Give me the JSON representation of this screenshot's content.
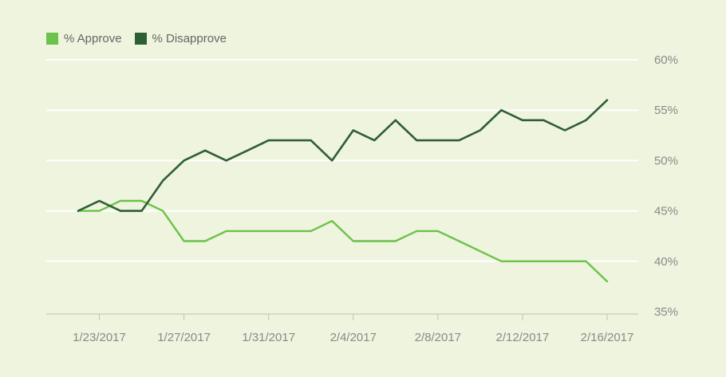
{
  "chart_data": {
    "type": "line",
    "title": "",
    "xlabel": "",
    "ylabel": "",
    "ylim": [
      35,
      60
    ],
    "ytick_labels": [
      "60%",
      "55%",
      "50%",
      "45%",
      "40%",
      "35%"
    ],
    "ytick_values": [
      60,
      55,
      50,
      45,
      40,
      35
    ],
    "xtick_labels": [
      "1/23/2017",
      "1/27/2017",
      "1/31/2017",
      "2/4/2017",
      "2/8/2017",
      "2/12/2017",
      "2/16/2017"
    ],
    "xtick_positions": [
      1,
      5,
      9,
      13,
      17,
      21,
      25
    ],
    "x": [
      0,
      1,
      2,
      3,
      4,
      5,
      6,
      7,
      8,
      9,
      10,
      11,
      12,
      13,
      14,
      15,
      16,
      17,
      18,
      19,
      20,
      21,
      22,
      23,
      24,
      25
    ],
    "series": [
      {
        "name": "% Approve",
        "color": "#6cc24a",
        "values": [
          45,
          45,
          46,
          46,
          45,
          42,
          42,
          43,
          43,
          43,
          43,
          43,
          44,
          42,
          42,
          42,
          43,
          43,
          42,
          41,
          40,
          40,
          40,
          40,
          40,
          38
        ]
      },
      {
        "name": "% Disapprove",
        "color": "#2e5e34",
        "values": [
          45,
          46,
          45,
          45,
          48,
          50,
          51,
          50,
          51,
          52,
          52,
          52,
          50,
          53,
          52,
          54,
          52,
          52,
          52,
          53,
          55,
          54,
          54,
          53,
          54,
          56
        ]
      }
    ],
    "legend": "top-left",
    "grid": true
  }
}
